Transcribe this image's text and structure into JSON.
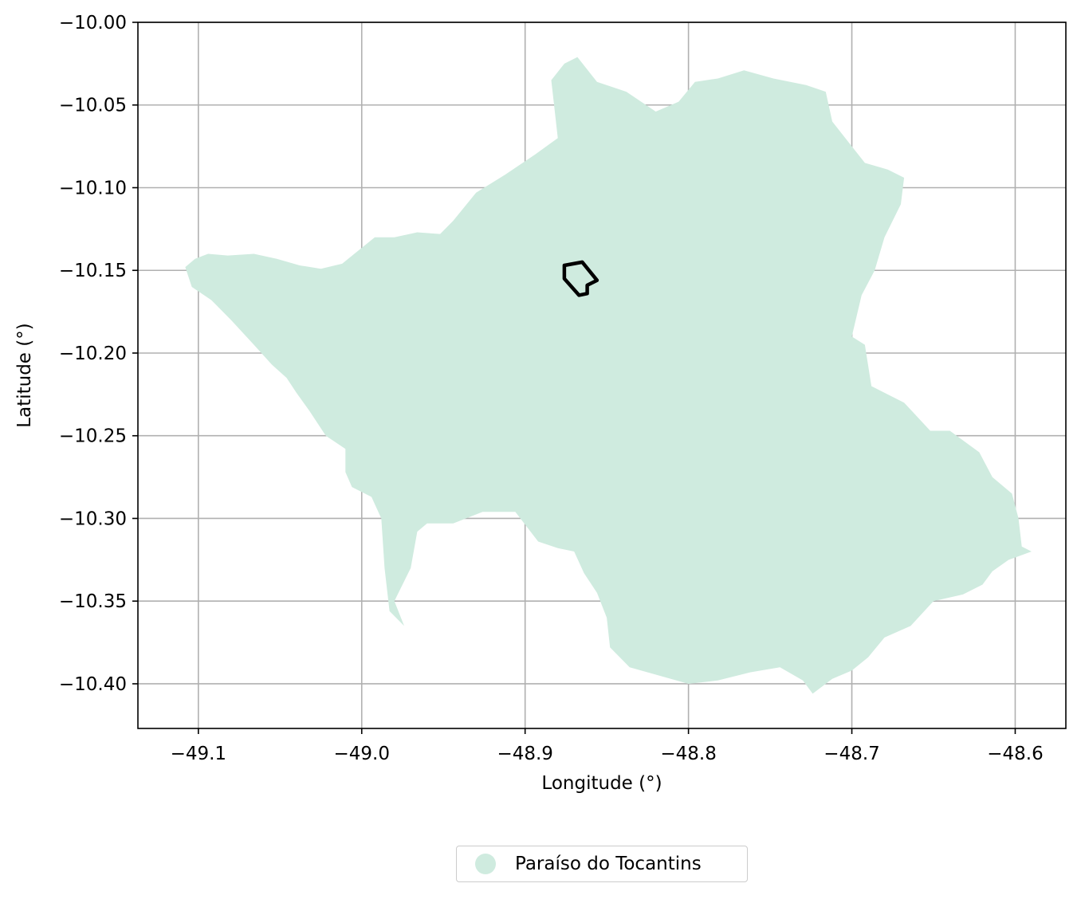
{
  "chart_data": {
    "type": "map",
    "title": "",
    "xlabel": "Longitude (°)",
    "ylabel": "Latitude (°)",
    "xlim": [
      -49.137,
      -48.569
    ],
    "ylim": [
      -10.427,
      -10.0
    ],
    "xticks": [
      -49.1,
      -49.0,
      -48.9,
      -48.8,
      -48.7,
      -48.6
    ],
    "xtick_labels": [
      "−49.1",
      "−49.0",
      "−48.9",
      "−48.8",
      "−48.7",
      "−48.6"
    ],
    "yticks": [
      -10.0,
      -10.05,
      -10.1,
      -10.15,
      -10.2,
      -10.25,
      -10.3,
      -10.35,
      -10.4
    ],
    "ytick_labels": [
      "−10.00",
      "−10.05",
      "−10.10",
      "−10.15",
      "−10.20",
      "−10.25",
      "−10.30",
      "−10.35",
      "−10.40"
    ],
    "grid": true,
    "legend_position": "bottom-center, below axes",
    "colors": {
      "region_fill": "#cfebdf",
      "highlight_outline": "#000000",
      "grid": "#b0b0b0"
    },
    "series": [
      {
        "name": "Paraíso do Tocantins",
        "kind": "polygon",
        "coordinates": [
          [
            -49.108,
            -10.148
          ],
          [
            -49.102,
            -10.143
          ],
          [
            -49.094,
            -10.14
          ],
          [
            -49.082,
            -10.141
          ],
          [
            -49.066,
            -10.14
          ],
          [
            -49.052,
            -10.143
          ],
          [
            -49.038,
            -10.147
          ],
          [
            -49.025,
            -10.149
          ],
          [
            -49.012,
            -10.146
          ],
          [
            -49.002,
            -10.138
          ],
          [
            -48.992,
            -10.13
          ],
          [
            -48.98,
            -10.13
          ],
          [
            -48.966,
            -10.127
          ],
          [
            -48.952,
            -10.128
          ],
          [
            -48.944,
            -10.12
          ],
          [
            -48.93,
            -10.103
          ],
          [
            -48.912,
            -10.092
          ],
          [
            -48.894,
            -10.08
          ],
          [
            -48.88,
            -10.07
          ],
          [
            -48.884,
            -10.035
          ],
          [
            -48.876,
            -10.025
          ],
          [
            -48.868,
            -10.021
          ],
          [
            -48.856,
            -10.036
          ],
          [
            -48.838,
            -10.042
          ],
          [
            -48.82,
            -10.054
          ],
          [
            -48.806,
            -10.048
          ],
          [
            -48.796,
            -10.036
          ],
          [
            -48.782,
            -10.034
          ],
          [
            -48.766,
            -10.029
          ],
          [
            -48.748,
            -10.034
          ],
          [
            -48.728,
            -10.038
          ],
          [
            -48.716,
            -10.042
          ],
          [
            -48.712,
            -10.06
          ],
          [
            -48.7,
            -10.075
          ],
          [
            -48.692,
            -10.085
          ],
          [
            -48.678,
            -10.089
          ],
          [
            -48.668,
            -10.094
          ],
          [
            -48.67,
            -10.11
          ],
          [
            -48.68,
            -10.13
          ],
          [
            -48.686,
            -10.15
          ],
          [
            -48.694,
            -10.165
          ],
          [
            -48.7,
            -10.19
          ],
          [
            -48.692,
            -10.195
          ],
          [
            -48.688,
            -10.22
          ],
          [
            -48.668,
            -10.23
          ],
          [
            -48.652,
            -10.247
          ],
          [
            -48.64,
            -10.247
          ],
          [
            -48.622,
            -10.26
          ],
          [
            -48.614,
            -10.275
          ],
          [
            -48.602,
            -10.285
          ],
          [
            -48.598,
            -10.3
          ],
          [
            -48.596,
            -10.317
          ],
          [
            -48.59,
            -10.32
          ],
          [
            -48.604,
            -10.325
          ],
          [
            -48.614,
            -10.332
          ],
          [
            -48.62,
            -10.34
          ],
          [
            -48.632,
            -10.346
          ],
          [
            -48.65,
            -10.35
          ],
          [
            -48.664,
            -10.365
          ],
          [
            -48.68,
            -10.372
          ],
          [
            -48.69,
            -10.384
          ],
          [
            -48.7,
            -10.392
          ],
          [
            -48.712,
            -10.397
          ],
          [
            -48.724,
            -10.406
          ],
          [
            -48.73,
            -10.398
          ],
          [
            -48.744,
            -10.39
          ],
          [
            -48.762,
            -10.393
          ],
          [
            -48.782,
            -10.398
          ],
          [
            -48.8,
            -10.4
          ],
          [
            -48.818,
            -10.395
          ],
          [
            -48.836,
            -10.39
          ],
          [
            -48.848,
            -10.378
          ],
          [
            -48.85,
            -10.36
          ],
          [
            -48.856,
            -10.345
          ],
          [
            -48.864,
            -10.333
          ],
          [
            -48.87,
            -10.32
          ],
          [
            -48.88,
            -10.318
          ],
          [
            -48.892,
            -10.314
          ],
          [
            -48.906,
            -10.296
          ],
          [
            -48.926,
            -10.296
          ],
          [
            -48.944,
            -10.303
          ],
          [
            -48.96,
            -10.303
          ],
          [
            -48.966,
            -10.308
          ],
          [
            -48.97,
            -10.33
          ],
          [
            -48.98,
            -10.35
          ],
          [
            -48.974,
            -10.365
          ],
          [
            -48.983,
            -10.356
          ],
          [
            -48.986,
            -10.33
          ],
          [
            -48.988,
            -10.3
          ],
          [
            -48.994,
            -10.287
          ],
          [
            -49.006,
            -10.281
          ],
          [
            -49.01,
            -10.272
          ],
          [
            -49.01,
            -10.258
          ],
          [
            -49.022,
            -10.25
          ],
          [
            -49.032,
            -10.235
          ],
          [
            -49.04,
            -10.224
          ],
          [
            -49.046,
            -10.215
          ],
          [
            -49.055,
            -10.207
          ],
          [
            -49.066,
            -10.195
          ],
          [
            -49.08,
            -10.18
          ],
          [
            -49.092,
            -10.168
          ],
          [
            -49.104,
            -10.16
          ],
          [
            -49.108,
            -10.148
          ]
        ]
      },
      {
        "name": "",
        "kind": "outline",
        "coordinates": [
          [
            -48.876,
            -10.147
          ],
          [
            -48.865,
            -10.145
          ],
          [
            -48.856,
            -10.156
          ],
          [
            -48.862,
            -10.159
          ],
          [
            -48.862,
            -10.164
          ],
          [
            -48.867,
            -10.165
          ],
          [
            -48.876,
            -10.155
          ],
          [
            -48.876,
            -10.147
          ]
        ]
      }
    ],
    "legend": [
      {
        "label": "Paraíso do Tocantins",
        "marker": "circle",
        "color": "#cfebdf"
      }
    ]
  }
}
